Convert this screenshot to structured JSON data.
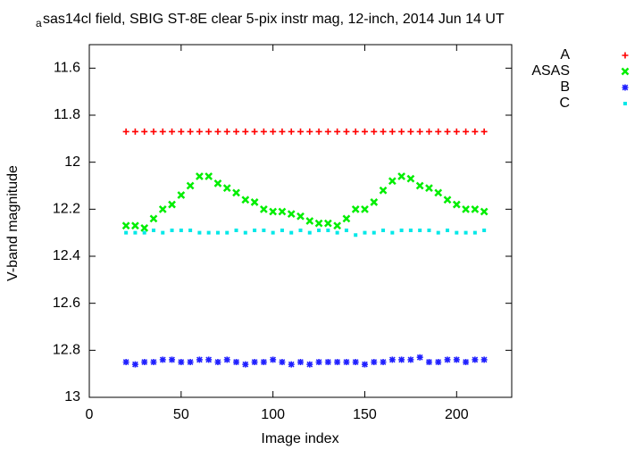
{
  "chart_data": {
    "type": "scatter",
    "title_subscript": "a",
    "title": "sas14cl field, SBIG ST-8E clear 5-pix instr mag, 12-inch, 2014 Jun 14 UT",
    "x_label": "Image index",
    "y_label": "V-band magnitude",
    "xlim": [
      0,
      230
    ],
    "xticks": [
      0,
      50,
      100,
      150,
      200
    ],
    "ylim": [
      13,
      11.5
    ],
    "yticks": [
      11.6,
      11.8,
      12,
      12.2,
      12.4,
      12.6,
      12.8,
      13
    ],
    "grid": false,
    "legend": "outside-top-right",
    "x": [
      20,
      25,
      30,
      35,
      40,
      45,
      50,
      55,
      60,
      65,
      70,
      75,
      80,
      85,
      90,
      95,
      100,
      105,
      110,
      115,
      120,
      125,
      130,
      135,
      140,
      145,
      150,
      155,
      160,
      165,
      170,
      175,
      180,
      185,
      190,
      195,
      200,
      205,
      210,
      215
    ],
    "series": [
      {
        "name": "A",
        "color": "#ff0000",
        "marker": "plus",
        "values": [
          11.87,
          11.87,
          11.87,
          11.87,
          11.87,
          11.87,
          11.87,
          11.87,
          11.87,
          11.87,
          11.87,
          11.87,
          11.87,
          11.87,
          11.87,
          11.87,
          11.87,
          11.87,
          11.87,
          11.87,
          11.87,
          11.87,
          11.87,
          11.87,
          11.87,
          11.87,
          11.87,
          11.87,
          11.87,
          11.87,
          11.87,
          11.87,
          11.87,
          11.87,
          11.87,
          11.87,
          11.87,
          11.87,
          11.87,
          11.87
        ]
      },
      {
        "name": "ASAS",
        "color": "#00ee00",
        "marker": "cross",
        "values": [
          12.27,
          12.27,
          12.28,
          12.24,
          12.2,
          12.18,
          12.14,
          12.1,
          12.06,
          12.06,
          12.09,
          12.11,
          12.13,
          12.16,
          12.17,
          12.2,
          12.21,
          12.21,
          12.22,
          12.23,
          12.25,
          12.26,
          12.26,
          12.27,
          12.24,
          12.2,
          12.2,
          12.17,
          12.12,
          12.08,
          12.06,
          12.07,
          12.1,
          12.11,
          12.13,
          12.16,
          12.18,
          12.2,
          12.2,
          12.21
        ]
      },
      {
        "name": "B",
        "color": "#2020ff",
        "marker": "star",
        "values": [
          12.85,
          12.86,
          12.85,
          12.85,
          12.84,
          12.84,
          12.85,
          12.85,
          12.84,
          12.84,
          12.85,
          12.84,
          12.85,
          12.86,
          12.85,
          12.85,
          12.84,
          12.85,
          12.86,
          12.85,
          12.86,
          12.85,
          12.85,
          12.85,
          12.85,
          12.85,
          12.86,
          12.85,
          12.85,
          12.84,
          12.84,
          12.84,
          12.83,
          12.85,
          12.85,
          12.84,
          12.84,
          12.85,
          12.84,
          12.84
        ]
      },
      {
        "name": "C",
        "color": "#00e8e8",
        "marker": "dot",
        "values": [
          12.3,
          12.3,
          12.3,
          12.29,
          12.3,
          12.29,
          12.29,
          12.29,
          12.3,
          12.3,
          12.3,
          12.3,
          12.29,
          12.3,
          12.29,
          12.29,
          12.3,
          12.29,
          12.3,
          12.29,
          12.3,
          12.29,
          12.29,
          12.3,
          12.29,
          12.31,
          12.3,
          12.3,
          12.29,
          12.3,
          12.29,
          12.29,
          12.29,
          12.29,
          12.3,
          12.29,
          12.3,
          12.3,
          12.3,
          12.29
        ]
      }
    ]
  }
}
